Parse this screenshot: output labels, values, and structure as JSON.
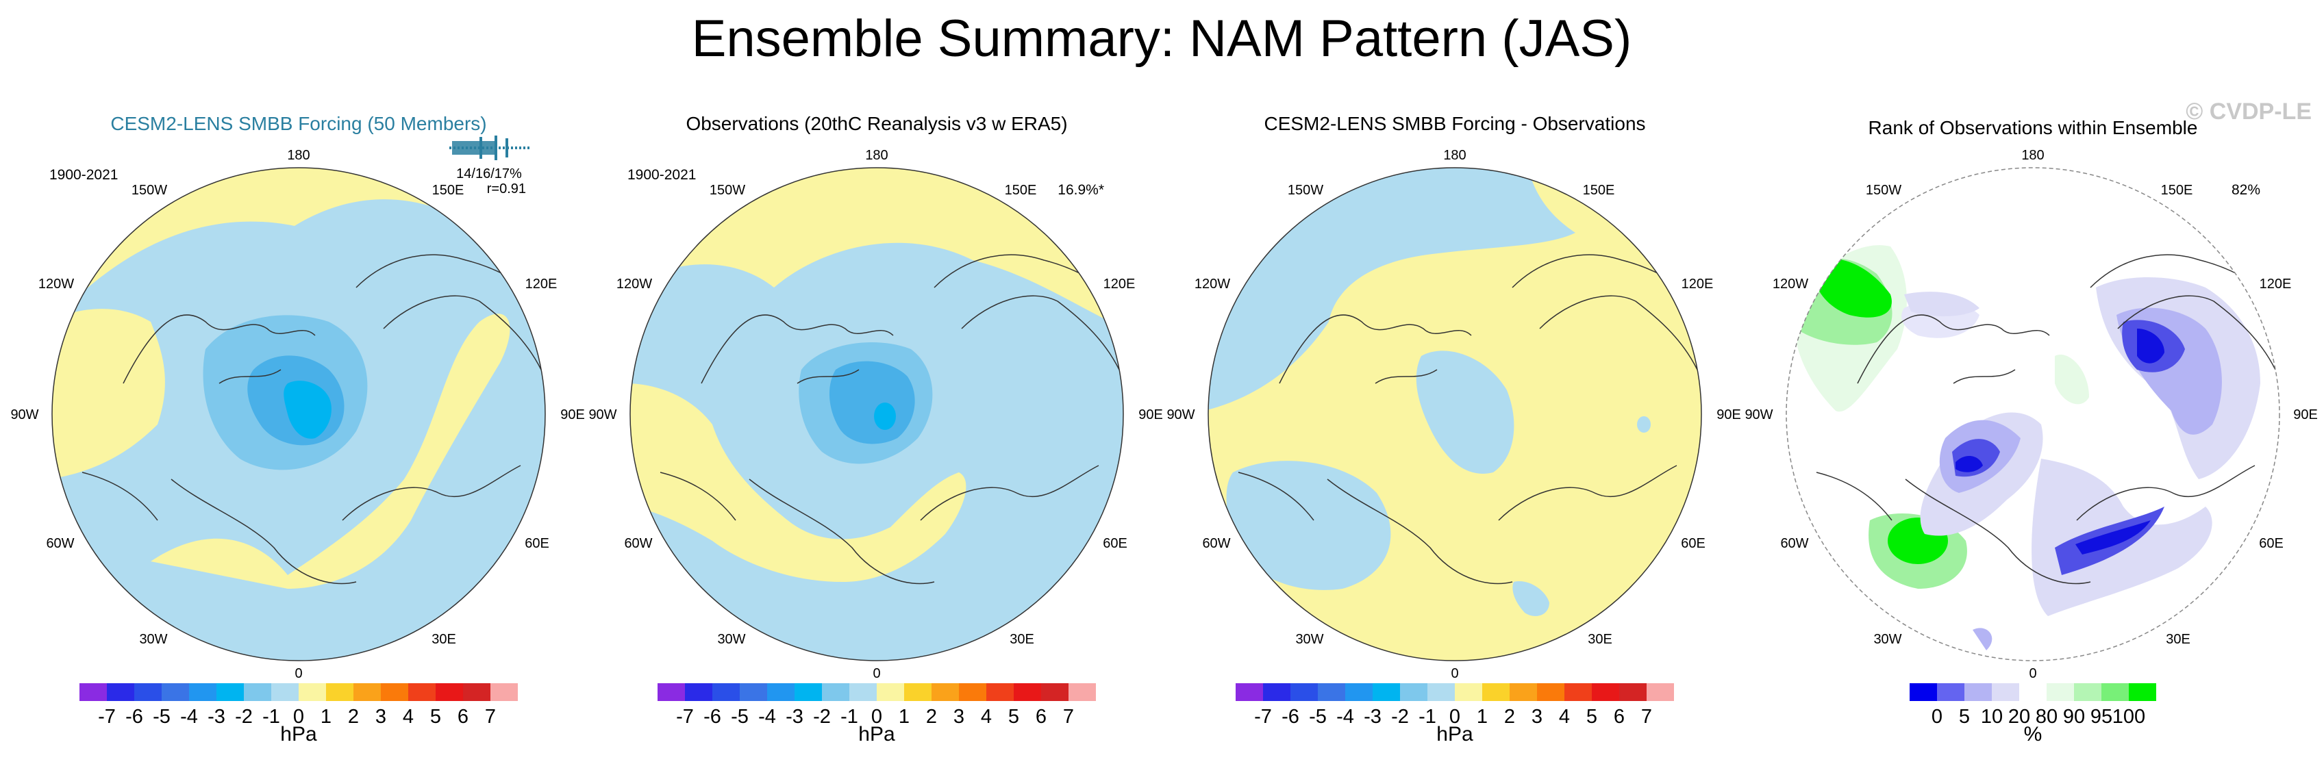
{
  "title": "Ensemble Summary: NAM Pattern (JAS)",
  "watermark": "© CVDP-LE",
  "colors": {
    "title_blue": "#2a7fa0",
    "light_blue": "#b0dcf0",
    "mid_blue": "#7ec8ec",
    "blue": "#49b0e8",
    "cyan_blue": "#00b4f0",
    "yellow": "#faf5a2",
    "rank_green": "#00ee00",
    "rank_light_green": "#a0f0a0",
    "rank_blue": "#1010e0",
    "rank_mid_blue": "#5050e6",
    "rank_pale_blue": "#dcdcf6",
    "coast": "#333333"
  },
  "lon_labels": {
    "top": "180",
    "bottom": "0",
    "left_upper": "150W",
    "right_upper": "150E",
    "left_mid_upper": "120W",
    "right_mid_upper": "120E",
    "left_mid": "90W",
    "right_mid": "90E",
    "left_mid_lower": "60W",
    "right_mid_lower": "60E",
    "left_lower": "30W",
    "right_lower": "30E"
  },
  "panels": [
    {
      "title": "CESM2-LENS SMBB Forcing (50 Members)",
      "period": "1900-2021",
      "stat_line1": "14/16/17%",
      "stat_line2": "r=0.91",
      "corner_value": ""
    },
    {
      "title": "Observations (20thC Reanalysis v3 w ERA5)",
      "period": "1900-2021",
      "corner_value": "16.9%*"
    },
    {
      "title": "CESM2-LENS SMBB Forcing - Observations",
      "period": "",
      "corner_value": ""
    },
    {
      "title": "Rank of Observations within Ensemble",
      "period": "",
      "corner_value": "82%"
    }
  ],
  "chart_data": [
    {
      "type": "heatmap",
      "title": "CESM2-LENS SMBB Forcing (50 Members)",
      "projection": "north polar stereographic",
      "units": "hPa",
      "colorbar_levels": [
        -7,
        -6,
        -5,
        -4,
        -3,
        -2,
        -1,
        0,
        1,
        2,
        3,
        4,
        5,
        6,
        7
      ],
      "colorbar_colors": [
        "#8a2be2",
        "#2a2ae8",
        "#2a4fe8",
        "#3a74e6",
        "#2196f0",
        "#00b4f0",
        "#7ec8ec",
        "#b0dcf0",
        "#faf5a2",
        "#fad22a",
        "#faa21a",
        "#fa7a0a",
        "#f0401a",
        "#e81818",
        "#d42424",
        "#f8a8a8"
      ],
      "pattern_summary": "Negative anomaly centered over the Arctic (minimum about -3 hPa), positive ring over the mid-latitude Pacific and Atlantic (about 0 to 1 hPa)",
      "min_value": -3,
      "max_value": 1
    },
    {
      "type": "heatmap",
      "title": "Observations (20thC Reanalysis v3 w ERA5)",
      "projection": "north polar stereographic",
      "units": "hPa",
      "colorbar_levels": [
        -7,
        -6,
        -5,
        -4,
        -3,
        -2,
        -1,
        0,
        1,
        2,
        3,
        4,
        5,
        6,
        7
      ],
      "colorbar_colors": [
        "#8a2be2",
        "#2a2ae8",
        "#2a4fe8",
        "#3a74e6",
        "#2196f0",
        "#00b4f0",
        "#7ec8ec",
        "#b0dcf0",
        "#faf5a2",
        "#fad22a",
        "#faa21a",
        "#fa7a0a",
        "#f0401a",
        "#e81818",
        "#d42424",
        "#f8a8a8"
      ],
      "explained_variance_pct": 16.9,
      "min_value": -3,
      "max_value": 1
    },
    {
      "type": "heatmap",
      "title": "CESM2-LENS SMBB Forcing - Observations",
      "projection": "north polar stereographic",
      "units": "hPa",
      "colorbar_levels": [
        -7,
        -6,
        -5,
        -4,
        -3,
        -2,
        -1,
        0,
        1,
        2,
        3,
        4,
        5,
        6,
        7
      ],
      "colorbar_colors": [
        "#8a2be2",
        "#2a2ae8",
        "#2a4fe8",
        "#3a74e6",
        "#2196f0",
        "#00b4f0",
        "#7ec8ec",
        "#b0dcf0",
        "#faf5a2",
        "#fad22a",
        "#faa21a",
        "#fa7a0a",
        "#f0401a",
        "#e81818",
        "#d42424",
        "#f8a8a8"
      ],
      "min_value": -1,
      "max_value": 1
    },
    {
      "type": "heatmap",
      "title": "Rank of Observations within Ensemble",
      "projection": "north polar stereographic",
      "units": "%",
      "colorbar_levels": [
        0,
        5,
        10,
        20,
        80,
        90,
        95,
        100
      ],
      "colorbar_tick_labels": [
        "0",
        "5",
        "10",
        "20",
        "80",
        "90",
        "95",
        "100"
      ],
      "colorbar_colors": [
        "#0000ee",
        "#6464f0",
        "#b4b4f4",
        "#dcdcf6",
        "#ffffff",
        "#e6fae6",
        "#b4f5b4",
        "#78f078",
        "#00ee00"
      ],
      "overall_rank_pct": 82
    }
  ],
  "colorbar_hpa": {
    "tick_labels": [
      "-7",
      "-6",
      "-5",
      "-4",
      "-3",
      "-2",
      "-1",
      "0",
      "1",
      "2",
      "3",
      "4",
      "5",
      "6",
      "7"
    ],
    "units": "hPa"
  },
  "colorbar_rank": {
    "tick_labels": [
      "0",
      "5",
      "10",
      "20",
      "80",
      "90",
      "95",
      "100"
    ],
    "units": "%"
  }
}
